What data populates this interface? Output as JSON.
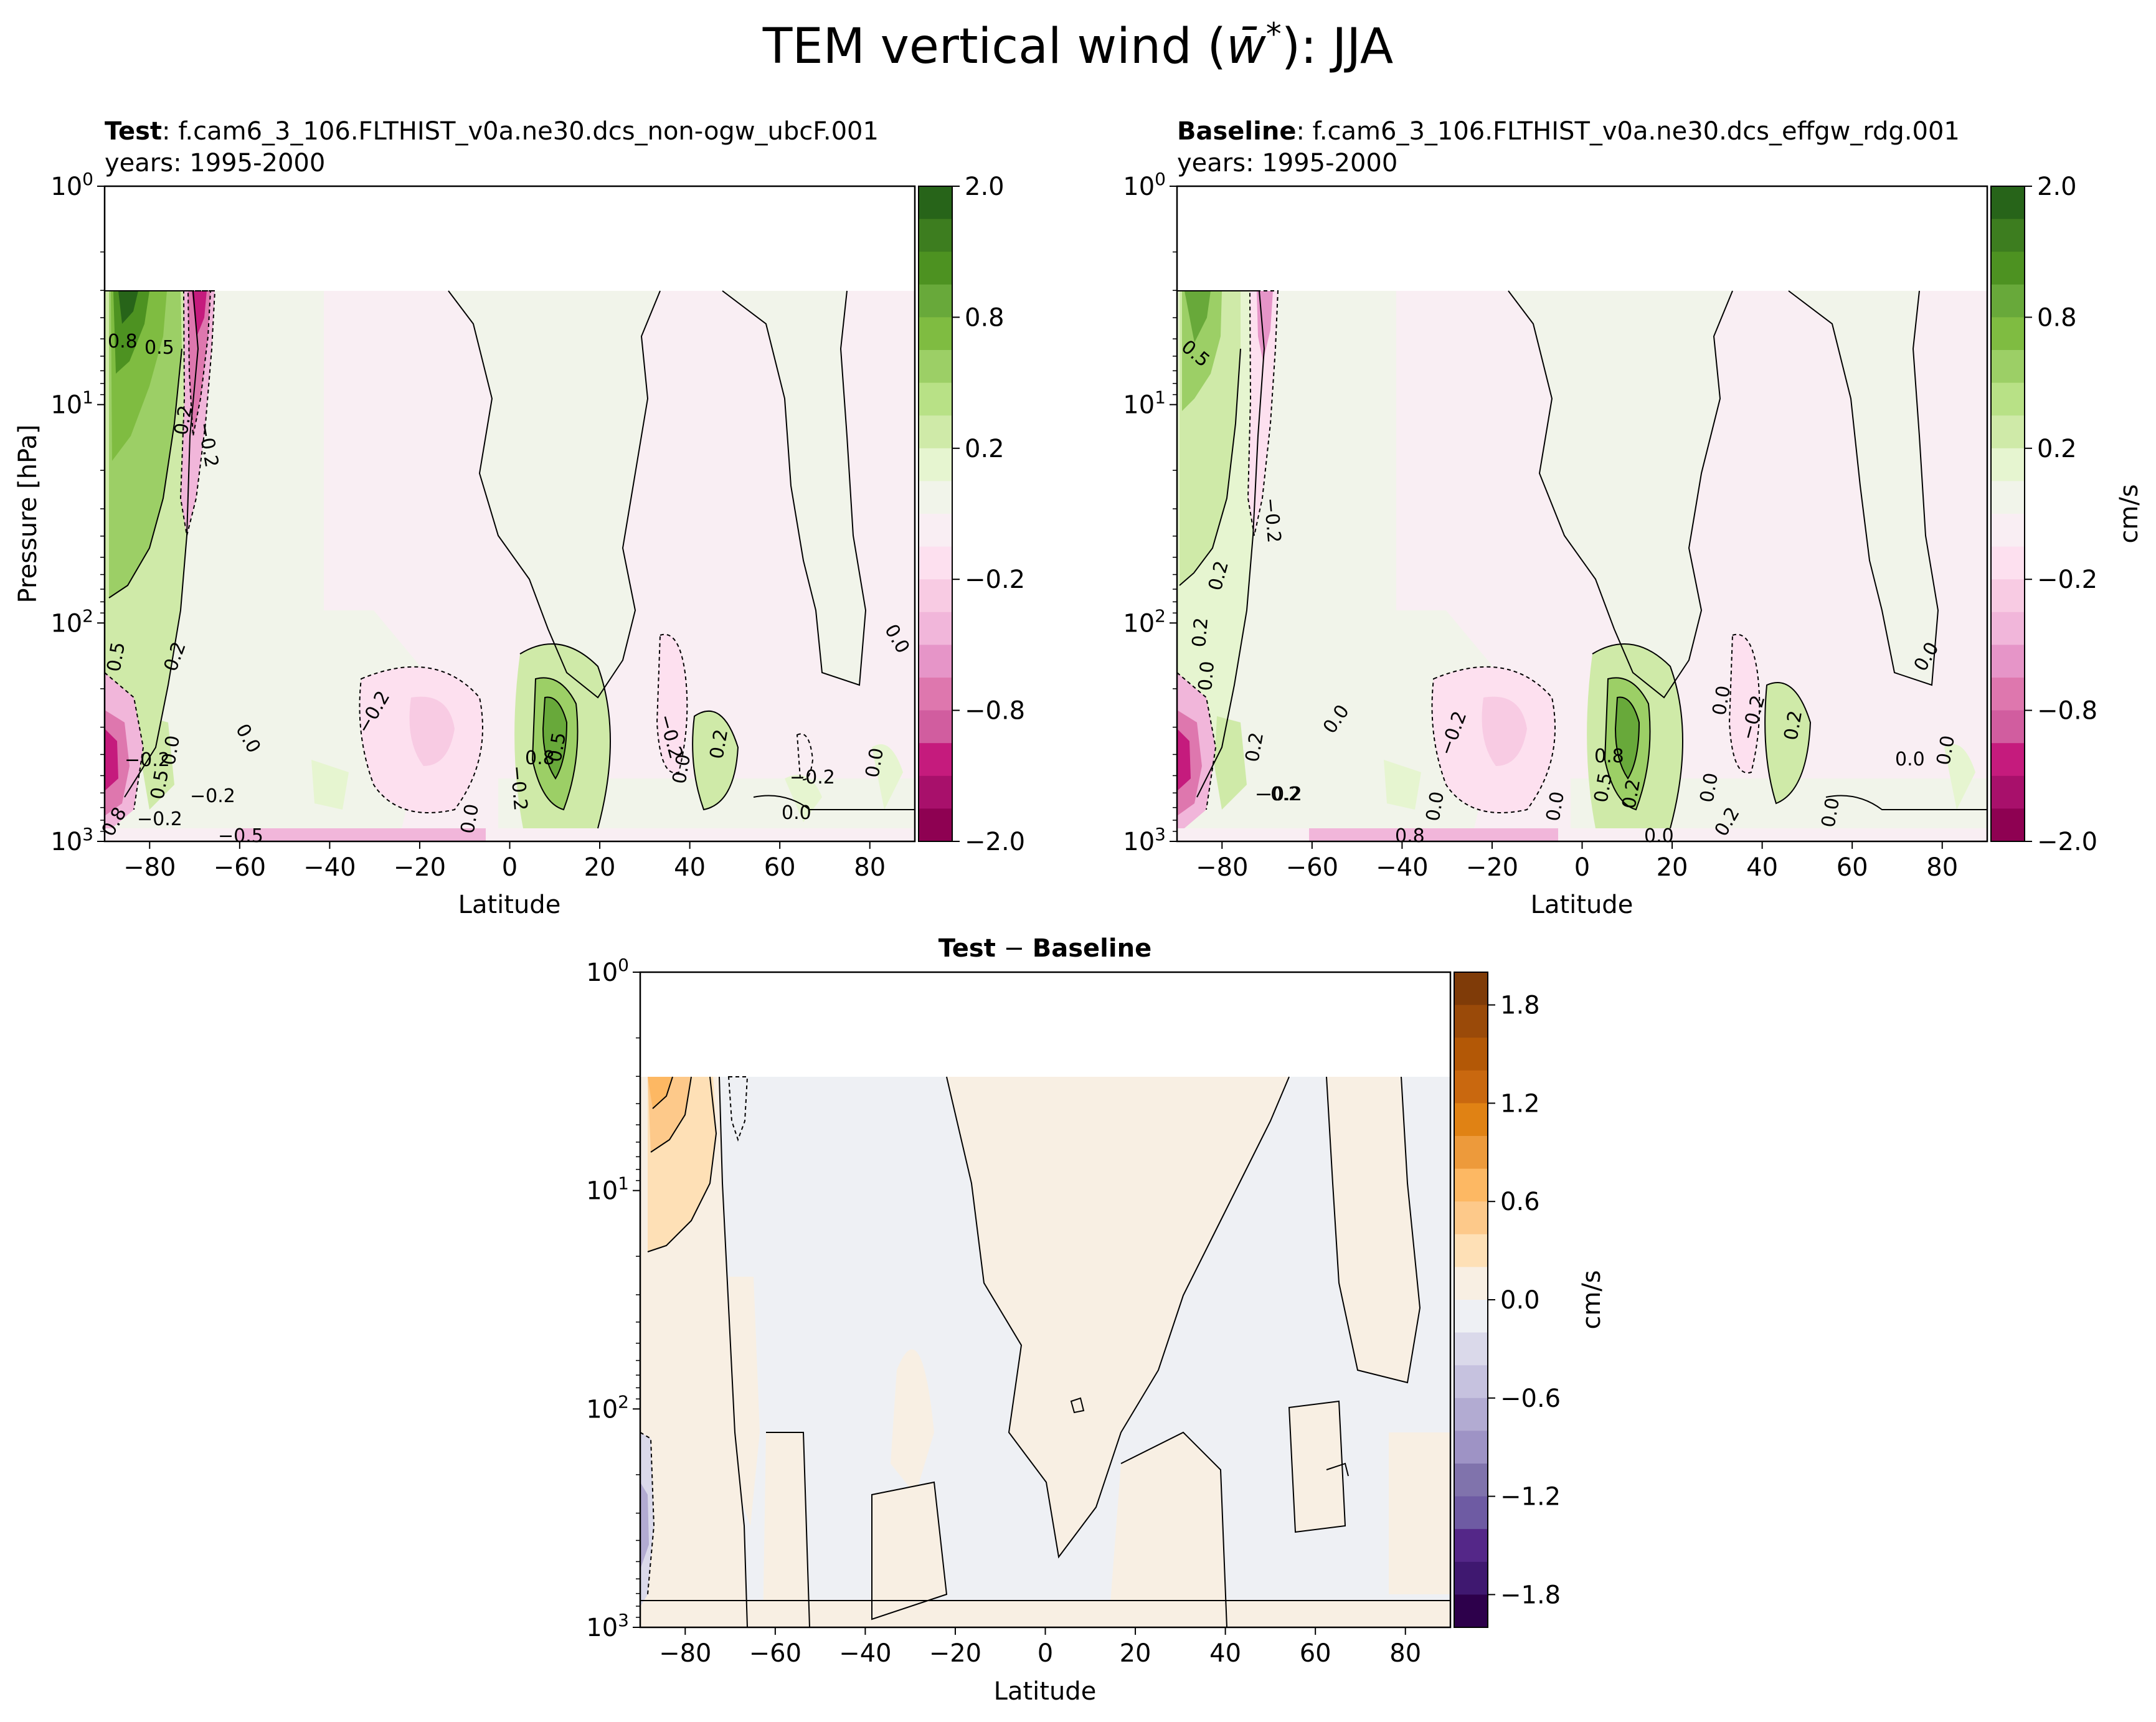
{
  "figure": {
    "title_prefix": "TEM vertical wind (",
    "title_symbol": "w̄",
    "title_sup": "*",
    "title_suffix": "): JJA"
  },
  "panels": [
    {
      "id": "test",
      "title_bold": "Test",
      "title_rest": ": f.cam6_3_106.FLTHIST_v0a.ne30.dcs_non-ogw_ubcF.001",
      "subtitle": "years: 1995-2000",
      "ylabel": "Pressure [hPa]",
      "xlabel": "Latitude",
      "x_ticks": [
        "−80",
        "−60",
        "−40",
        "−20",
        "0",
        "20",
        "40",
        "60",
        "80"
      ],
      "y_ticks": [
        {
          "base": "10",
          "exp": "0"
        },
        {
          "base": "10",
          "exp": "1"
        },
        {
          "base": "10",
          "exp": "2"
        },
        {
          "base": "10",
          "exp": "3"
        }
      ],
      "contour_labels": [
        "0.8",
        "0.5",
        "0.2",
        "−0.2",
        "0.2",
        "0.5",
        "0.0",
        "−0.2",
        "0.0",
        "−0.2",
        "−0.2",
        "0.8",
        "0.5",
        "−0.2",
        "0.0",
        "0.2",
        "0.0",
        "−0.2",
        "0.0",
        "0.0",
        "0.0",
        "−0.2",
        "−0.2",
        "0.8",
        "−0.5",
        "0.5"
      ]
    },
    {
      "id": "baseline",
      "title_bold": "Baseline",
      "title_rest": ": f.cam6_3_106.FLTHIST_v0a.ne30.dcs_effgw_rdg.001",
      "subtitle": "years: 1995-2000",
      "xlabel": "Latitude",
      "x_ticks": [
        "−80",
        "−60",
        "−40",
        "−20",
        "0",
        "20",
        "40",
        "60",
        "80"
      ],
      "y_ticks": [
        {
          "base": "10",
          "exp": "0"
        },
        {
          "base": "10",
          "exp": "1"
        },
        {
          "base": "10",
          "exp": "2"
        },
        {
          "base": "10",
          "exp": "3"
        }
      ],
      "contour_labels": [
        "0.5",
        "−0.2",
        "0.2",
        "0.2",
        "0.0",
        "0.2",
        "−0.2",
        "0.0",
        "−0.2",
        "0.0",
        "0.5",
        "0.8",
        "0.2",
        "0.0",
        "0.0",
        "−0.2",
        "0.2",
        "0.0",
        "0.0",
        "0.0",
        "0.0",
        "0.0",
        "−0.2",
        "0.8",
        "0.0",
        "0.2"
      ]
    },
    {
      "id": "diff",
      "title_bold_a": "Test",
      "title_mid": " − ",
      "title_bold_b": "Baseline",
      "xlabel": "Latitude",
      "x_ticks": [
        "−80",
        "−60",
        "−40",
        "−20",
        "0",
        "20",
        "40",
        "60",
        "80"
      ],
      "y_ticks": [
        {
          "base": "10",
          "exp": "0"
        },
        {
          "base": "10",
          "exp": "1"
        },
        {
          "base": "10",
          "exp": "2"
        },
        {
          "base": "10",
          "exp": "3"
        }
      ]
    }
  ],
  "colorbars": {
    "main": {
      "label": "cm/s",
      "ticks": [
        "2.0",
        "0.8",
        "0.2",
        "−0.2",
        "−0.8",
        "−2.0"
      ],
      "colors_top_to_bottom": [
        "#276419",
        "#3d7d1f",
        "#4d9221",
        "#68a93a",
        "#7fbc41",
        "#9ccf66",
        "#b8e186",
        "#cfeaa8",
        "#e6f5d0",
        "#f1f4ea",
        "#f9eef3",
        "#fde0ef",
        "#f8cbe3",
        "#f1b6da",
        "#e695c8",
        "#de77ae",
        "#d15d9f",
        "#c51b7d",
        "#a8106b",
        "#8e0152"
      ]
    },
    "diff": {
      "label": "cm/s",
      "ticks": [
        "1.8",
        "1.2",
        "0.6",
        "0.0",
        "−0.6",
        "−1.2",
        "−1.8"
      ],
      "colors_top_to_bottom": [
        "#7f3b08",
        "#9a4a09",
        "#b35806",
        "#c9680f",
        "#e08214",
        "#ed9a3b",
        "#fdb863",
        "#fdc98a",
        "#fee0b6",
        "#f8efe3",
        "#eef0f4",
        "#dad9ea",
        "#c6c2df",
        "#b2abd2",
        "#9e93c5",
        "#8073ac",
        "#6e5ba3",
        "#542788",
        "#3f1870",
        "#2d004b"
      ]
    }
  },
  "chart_data": [
    {
      "type": "heatmap",
      "name": "Test",
      "title": "Test: f.cam6_3_106.FLTHIST_v0a.ne30.dcs_non-ogw_ubcF.001",
      "subtitle": "years: 1995-2000",
      "xlabel": "Latitude",
      "ylabel": "Pressure [hPa]",
      "xlim": [
        -90,
        90
      ],
      "ylim": [
        1000,
        1
      ],
      "yscale": "log",
      "colorbar_label": "cm/s",
      "colorbar_range": [
        -2.0,
        2.0
      ],
      "contour_levels": [
        -2.0,
        -0.8,
        -0.5,
        -0.2,
        0.0,
        0.2,
        0.5,
        0.8,
        2.0
      ],
      "data_top_hPa": 3,
      "features": [
        {
          "lat": -82,
          "p": 5,
          "value": 1.2
        },
        {
          "lat": -68,
          "p": 5,
          "value": -0.8
        },
        {
          "lat": -85,
          "p": 350,
          "value": -1.2
        },
        {
          "lat": -18,
          "p": 300,
          "value": -0.4
        },
        {
          "lat": 8,
          "p": 320,
          "value": 0.8
        },
        {
          "lat": 35,
          "p": 350,
          "value": -0.3
        },
        {
          "lat": 42,
          "p": 600,
          "value": 0.4
        }
      ]
    },
    {
      "type": "heatmap",
      "name": "Baseline",
      "title": "Baseline: f.cam6_3_106.FLTHIST_v0a.ne30.dcs_effgw_rdg.001",
      "subtitle": "years: 1995-2000",
      "xlabel": "Latitude",
      "xlim": [
        -90,
        90
      ],
      "ylim": [
        1000,
        1
      ],
      "yscale": "log",
      "colorbar_label": "cm/s",
      "colorbar_range": [
        -2.0,
        2.0
      ],
      "contour_levels": [
        -2.0,
        -0.8,
        -0.5,
        -0.2,
        0.0,
        0.2,
        0.5,
        0.8,
        2.0
      ],
      "data_top_hPa": 3,
      "features": [
        {
          "lat": -82,
          "p": 5,
          "value": 0.8
        },
        {
          "lat": -68,
          "p": 5,
          "value": -0.5
        },
        {
          "lat": -86,
          "p": 350,
          "value": -1.2
        },
        {
          "lat": -18,
          "p": 300,
          "value": -0.4
        },
        {
          "lat": 8,
          "p": 320,
          "value": 0.8
        },
        {
          "lat": 35,
          "p": 350,
          "value": -0.3
        },
        {
          "lat": 42,
          "p": 400,
          "value": 0.4
        }
      ]
    },
    {
      "type": "heatmap",
      "name": "Test − Baseline",
      "title": "Test − Baseline",
      "xlabel": "Latitude",
      "xlim": [
        -90,
        90
      ],
      "ylim": [
        1000,
        1
      ],
      "yscale": "log",
      "colorbar_label": "cm/s",
      "colorbar_range": [
        -2.0,
        2.0
      ],
      "data_top_hPa": 3,
      "features": [
        {
          "lat": -86,
          "p": 5,
          "value": 0.6
        },
        {
          "lat": -68,
          "p": 5,
          "value": -0.4
        },
        {
          "lat": -88,
          "p": 350,
          "value": -0.6
        }
      ]
    }
  ]
}
